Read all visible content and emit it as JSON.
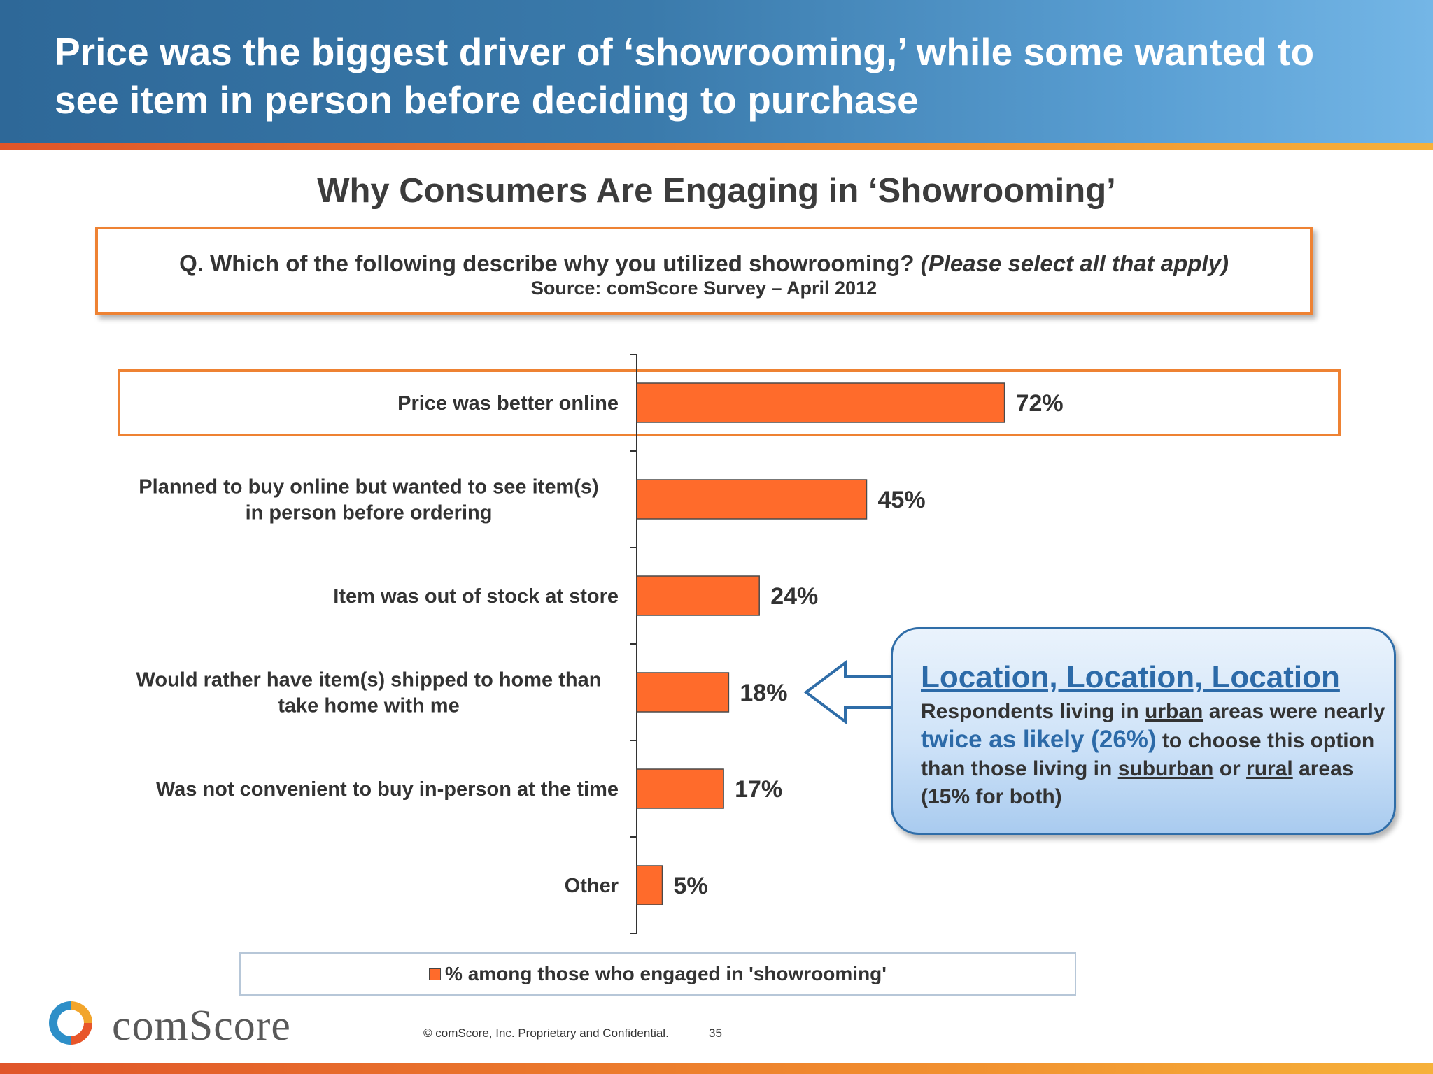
{
  "header": {
    "title": "Price was the biggest driver of ‘showrooming,’ while some wanted to see item in person before deciding to purchase"
  },
  "question": {
    "text": "Q. Which of the following describe why you utilized showrooming?",
    "instruction": "(Please select all that apply)",
    "source": "Source: comScore Survey – April 2012"
  },
  "chart_data": {
    "type": "bar",
    "orientation": "horizontal",
    "title": "Why Consumers Are Engaging in ‘Showrooming’",
    "categories": [
      [
        "Price was better online"
      ],
      [
        "Planned to buy online but wanted to see item(s)",
        "in person before ordering"
      ],
      [
        "Item was out of stock at store"
      ],
      [
        "Would rather have item(s) shipped to home than",
        "take home with me"
      ],
      [
        "Was not convenient to buy in-person at the time"
      ],
      [
        "Other"
      ]
    ],
    "series": [
      {
        "name": "% among those who engaged in 'showrooming'",
        "values": [
          72,
          45,
          24,
          18,
          17,
          5
        ],
        "labels": [
          "72%",
          "45%",
          "24%",
          "18%",
          "17%",
          "5%"
        ],
        "color": "#ff6b2b"
      }
    ],
    "xlim": [
      0,
      100
    ],
    "grid": false,
    "legend": "bottom",
    "highlighted_category_index": 0,
    "highlight_color": "#ee8233"
  },
  "callout": {
    "title": "Location, Location, Location",
    "body_1": "Respondents living in ",
    "urban": "urban",
    "body_2": " areas were nearly ",
    "highlight": "twice as likely (26%)",
    "body_3": " to choose this option than those living in ",
    "suburban": "suburban",
    "body_4": " or ",
    "rural": "rural",
    "body_5": " areas (15% for both)",
    "points_to_category_index": 3
  },
  "footer": {
    "logo_text": "comScore",
    "copyright": "© comScore, Inc.  Proprietary and Confidential.",
    "page_number": "35"
  },
  "colors": {
    "header_blue": "#2e6898",
    "accent_orange": "#ee8233",
    "bar_orange": "#ff6b2b",
    "callout_blue": "#2c6aa8"
  }
}
